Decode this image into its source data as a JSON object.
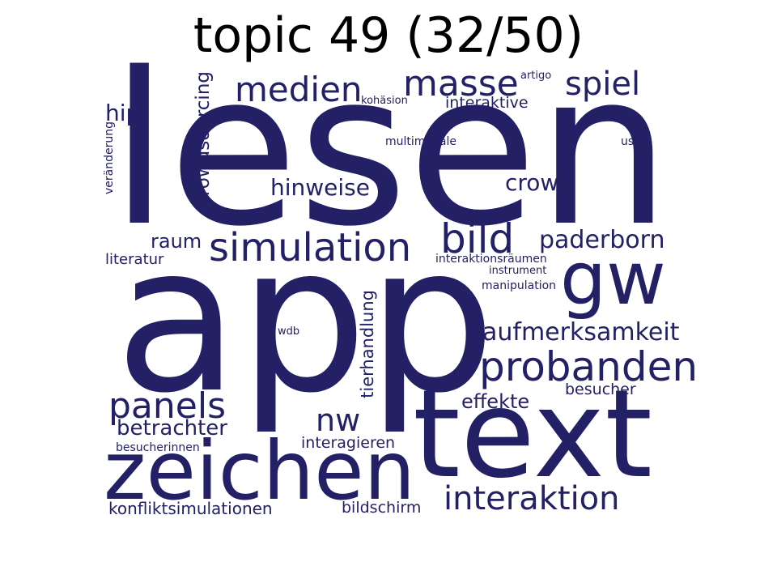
{
  "title": "topic 49 (32/50)",
  "colors": {
    "word": "#232066",
    "title": "#000000",
    "background": "#ffffff"
  },
  "words": {
    "lesen": "lesen",
    "app": "app",
    "text": "text",
    "zeichen": "zeichen",
    "gw": "gw",
    "simulation": "simulation",
    "probanden": "probanden",
    "bild": "bild",
    "masse": "masse",
    "medien": "medien",
    "spiel": "spiel",
    "panels": "panels",
    "interaktion": "interaktion",
    "aufmerksamkeit": "aufmerksamkeit",
    "paderborn": "paderborn",
    "nw": "nw",
    "hinweise": "hinweise",
    "crowd": "crowd",
    "betrachter": "betrachter",
    "effekte": "effekte",
    "raum": "raum",
    "hip": "hip",
    "konfliktsimulationen": "konfliktsimulationen",
    "bildschirm": "bildschirm",
    "interagieren": "interagieren",
    "interaktive": "interaktive",
    "crowdsourcing": "crowdsourcing",
    "tierhandlung": "tierhandlung",
    "literatur": "literatur",
    "besucher": "besucher",
    "besucherinnen": "besucherinnen",
    "interaktionsraeumen": "interaktionsräumen",
    "multimodale": "multimodale",
    "instrument": "instrument",
    "manipulation": "manipulation",
    "kohaesion": "kohäsion",
    "artigo": "artigo",
    "user": "user",
    "veraenderung": "veränderung",
    "wdb": "wdb"
  }
}
